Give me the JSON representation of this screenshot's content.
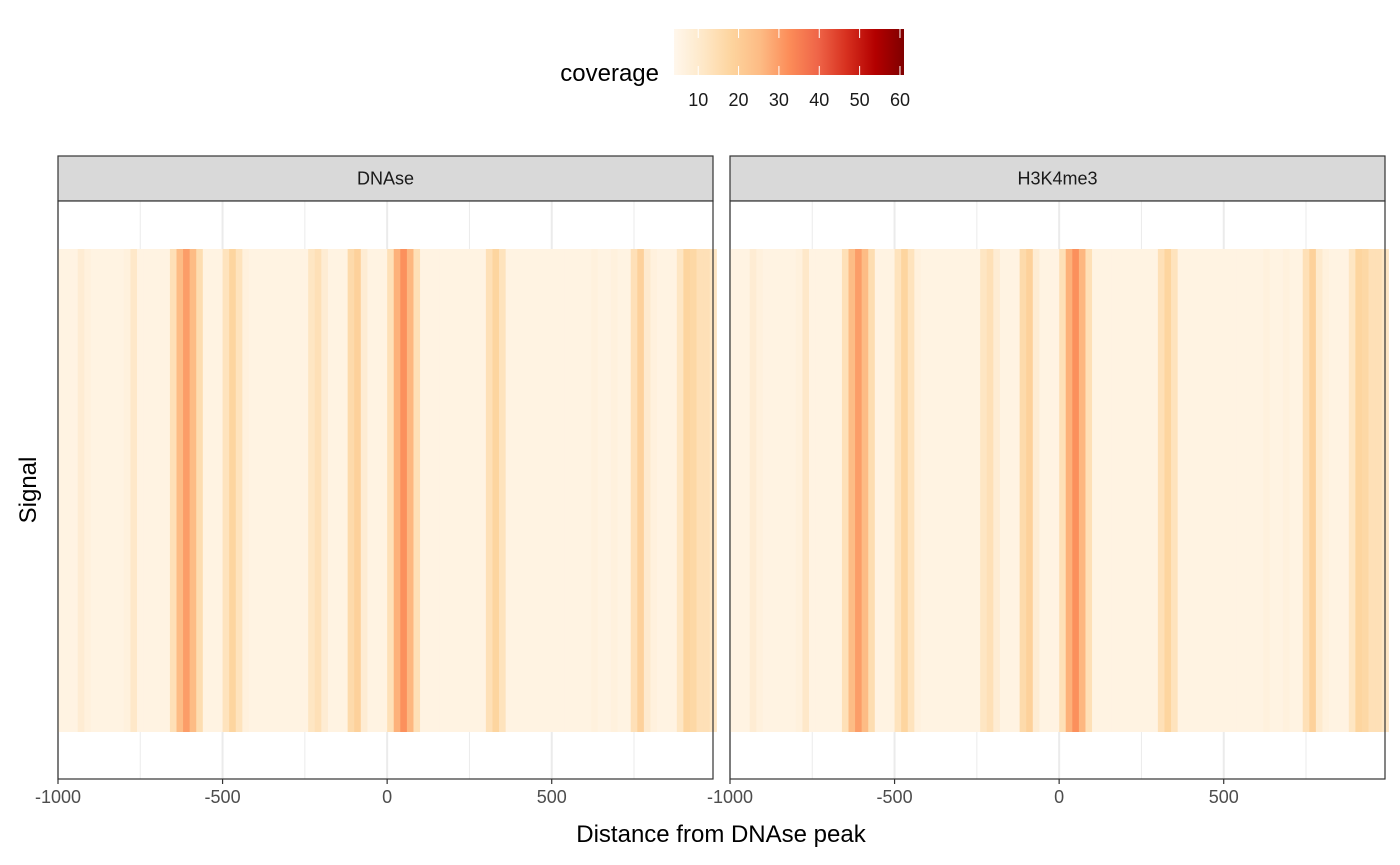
{
  "chart_data": {
    "type": "heatmap",
    "xlabel": "Distance from DNAse peak",
    "ylabel": "Signal",
    "xlim": [
      -1000,
      990
    ],
    "x_ticks": [
      -1000,
      -500,
      0,
      500
    ],
    "x_tick_labels": [
      "-1000",
      "-500",
      "0",
      "500"
    ],
    "x_minor_ticks": [
      -750,
      -250,
      250,
      750
    ],
    "grid": true,
    "legend": {
      "title": "coverage",
      "position": "top",
      "ticks": [
        10,
        20,
        30,
        40,
        50,
        60
      ],
      "tick_labels": [
        "10",
        "20",
        "30",
        "40",
        "50",
        "60"
      ],
      "range": [
        4,
        61
      ],
      "colors": [
        "#fff7ec",
        "#fee8c8",
        "#fdd49e",
        "#fdbb84",
        "#fc8d59",
        "#ef6548",
        "#d7301f",
        "#b30000",
        "#7f0000"
      ]
    },
    "bin_width": 20,
    "panels": [
      {
        "label": "DNAse",
        "bins": [
          {
            "x": -1000,
            "v": 6
          },
          {
            "x": -980,
            "v": 6
          },
          {
            "x": -960,
            "v": 6
          },
          {
            "x": -940,
            "v": 9
          },
          {
            "x": -920,
            "v": 7
          },
          {
            "x": -900,
            "v": 6
          },
          {
            "x": -880,
            "v": 6
          },
          {
            "x": -860,
            "v": 6
          },
          {
            "x": -840,
            "v": 6
          },
          {
            "x": -820,
            "v": 6
          },
          {
            "x": -800,
            "v": 7
          },
          {
            "x": -780,
            "v": 11
          },
          {
            "x": -760,
            "v": 6
          },
          {
            "x": -740,
            "v": 6
          },
          {
            "x": -720,
            "v": 6
          },
          {
            "x": -700,
            "v": 6
          },
          {
            "x": -680,
            "v": 6
          },
          {
            "x": -660,
            "v": 14
          },
          {
            "x": -640,
            "v": 25
          },
          {
            "x": -620,
            "v": 30
          },
          {
            "x": -600,
            "v": 25
          },
          {
            "x": -580,
            "v": 15
          },
          {
            "x": -560,
            "v": 6
          },
          {
            "x": -540,
            "v": 6
          },
          {
            "x": -520,
            "v": 6
          },
          {
            "x": -500,
            "v": 13
          },
          {
            "x": -480,
            "v": 18
          },
          {
            "x": -460,
            "v": 13
          },
          {
            "x": -440,
            "v": 7
          },
          {
            "x": -420,
            "v": 6
          },
          {
            "x": -400,
            "v": 6
          },
          {
            "x": -380,
            "v": 6
          },
          {
            "x": -360,
            "v": 6
          },
          {
            "x": -340,
            "v": 6
          },
          {
            "x": -320,
            "v": 6
          },
          {
            "x": -300,
            "v": 6
          },
          {
            "x": -280,
            "v": 6
          },
          {
            "x": -260,
            "v": 6
          },
          {
            "x": -240,
            "v": 12
          },
          {
            "x": -220,
            "v": 14
          },
          {
            "x": -200,
            "v": 9
          },
          {
            "x": -180,
            "v": 6
          },
          {
            "x": -160,
            "v": 6
          },
          {
            "x": -140,
            "v": 6
          },
          {
            "x": -120,
            "v": 16
          },
          {
            "x": -100,
            "v": 19
          },
          {
            "x": -80,
            "v": 9
          },
          {
            "x": -60,
            "v": 6
          },
          {
            "x": -40,
            "v": 6
          },
          {
            "x": -20,
            "v": 6
          },
          {
            "x": 0,
            "v": 14
          },
          {
            "x": 20,
            "v": 27
          },
          {
            "x": 40,
            "v": 32
          },
          {
            "x": 60,
            "v": 26
          },
          {
            "x": 80,
            "v": 14
          },
          {
            "x": 100,
            "v": 6
          },
          {
            "x": 120,
            "v": 6
          },
          {
            "x": 140,
            "v": 6
          },
          {
            "x": 160,
            "v": 6
          },
          {
            "x": 180,
            "v": 6
          },
          {
            "x": 200,
            "v": 6
          },
          {
            "x": 220,
            "v": 6
          },
          {
            "x": 240,
            "v": 6
          },
          {
            "x": 260,
            "v": 6
          },
          {
            "x": 280,
            "v": 6
          },
          {
            "x": 300,
            "v": 14
          },
          {
            "x": 320,
            "v": 18
          },
          {
            "x": 340,
            "v": 13
          },
          {
            "x": 360,
            "v": 6
          },
          {
            "x": 380,
            "v": 6
          },
          {
            "x": 400,
            "v": 6
          },
          {
            "x": 420,
            "v": 6
          },
          {
            "x": 440,
            "v": 6
          },
          {
            "x": 460,
            "v": 6
          },
          {
            "x": 480,
            "v": 6
          },
          {
            "x": 500,
            "v": 6
          },
          {
            "x": 520,
            "v": 6
          },
          {
            "x": 540,
            "v": 6
          },
          {
            "x": 560,
            "v": 6
          },
          {
            "x": 580,
            "v": 6
          },
          {
            "x": 600,
            "v": 6
          },
          {
            "x": 620,
            "v": 7
          },
          {
            "x": 640,
            "v": 6
          },
          {
            "x": 660,
            "v": 6
          },
          {
            "x": 680,
            "v": 7
          },
          {
            "x": 700,
            "v": 6
          },
          {
            "x": 720,
            "v": 6
          },
          {
            "x": 740,
            "v": 14
          },
          {
            "x": 760,
            "v": 19
          },
          {
            "x": 780,
            "v": 10
          },
          {
            "x": 800,
            "v": 7
          },
          {
            "x": 820,
            "v": 6
          },
          {
            "x": 840,
            "v": 6
          },
          {
            "x": 860,
            "v": 6
          },
          {
            "x": 880,
            "v": 12
          },
          {
            "x": 900,
            "v": 18
          },
          {
            "x": 920,
            "v": 17
          },
          {
            "x": 940,
            "v": 14
          },
          {
            "x": 960,
            "v": 14
          },
          {
            "x": 980,
            "v": 12
          }
        ]
      },
      {
        "label": "H3K4me3",
        "bins": [
          {
            "x": -1000,
            "v": 6
          },
          {
            "x": -980,
            "v": 6
          },
          {
            "x": -960,
            "v": 6
          },
          {
            "x": -940,
            "v": 9
          },
          {
            "x": -920,
            "v": 7
          },
          {
            "x": -900,
            "v": 6
          },
          {
            "x": -880,
            "v": 6
          },
          {
            "x": -860,
            "v": 6
          },
          {
            "x": -840,
            "v": 6
          },
          {
            "x": -820,
            "v": 6
          },
          {
            "x": -800,
            "v": 7
          },
          {
            "x": -780,
            "v": 11
          },
          {
            "x": -760,
            "v": 6
          },
          {
            "x": -740,
            "v": 6
          },
          {
            "x": -720,
            "v": 6
          },
          {
            "x": -700,
            "v": 6
          },
          {
            "x": -680,
            "v": 6
          },
          {
            "x": -660,
            "v": 14
          },
          {
            "x": -640,
            "v": 25
          },
          {
            "x": -620,
            "v": 30
          },
          {
            "x": -600,
            "v": 25
          },
          {
            "x": -580,
            "v": 15
          },
          {
            "x": -560,
            "v": 6
          },
          {
            "x": -540,
            "v": 6
          },
          {
            "x": -520,
            "v": 6
          },
          {
            "x": -500,
            "v": 13
          },
          {
            "x": -480,
            "v": 18
          },
          {
            "x": -460,
            "v": 13
          },
          {
            "x": -440,
            "v": 7
          },
          {
            "x": -420,
            "v": 6
          },
          {
            "x": -400,
            "v": 6
          },
          {
            "x": -380,
            "v": 6
          },
          {
            "x": -360,
            "v": 6
          },
          {
            "x": -340,
            "v": 6
          },
          {
            "x": -320,
            "v": 6
          },
          {
            "x": -300,
            "v": 6
          },
          {
            "x": -280,
            "v": 6
          },
          {
            "x": -260,
            "v": 6
          },
          {
            "x": -240,
            "v": 12
          },
          {
            "x": -220,
            "v": 14
          },
          {
            "x": -200,
            "v": 9
          },
          {
            "x": -180,
            "v": 6
          },
          {
            "x": -160,
            "v": 6
          },
          {
            "x": -140,
            "v": 6
          },
          {
            "x": -120,
            "v": 16
          },
          {
            "x": -100,
            "v": 19
          },
          {
            "x": -80,
            "v": 9
          },
          {
            "x": -60,
            "v": 6
          },
          {
            "x": -40,
            "v": 6
          },
          {
            "x": -20,
            "v": 6
          },
          {
            "x": 0,
            "v": 14
          },
          {
            "x": 20,
            "v": 27
          },
          {
            "x": 40,
            "v": 32
          },
          {
            "x": 60,
            "v": 26
          },
          {
            "x": 80,
            "v": 14
          },
          {
            "x": 100,
            "v": 6
          },
          {
            "x": 120,
            "v": 6
          },
          {
            "x": 140,
            "v": 6
          },
          {
            "x": 160,
            "v": 6
          },
          {
            "x": 180,
            "v": 6
          },
          {
            "x": 200,
            "v": 6
          },
          {
            "x": 220,
            "v": 6
          },
          {
            "x": 240,
            "v": 6
          },
          {
            "x": 260,
            "v": 6
          },
          {
            "x": 280,
            "v": 6
          },
          {
            "x": 300,
            "v": 14
          },
          {
            "x": 320,
            "v": 18
          },
          {
            "x": 340,
            "v": 13
          },
          {
            "x": 360,
            "v": 6
          },
          {
            "x": 380,
            "v": 6
          },
          {
            "x": 400,
            "v": 6
          },
          {
            "x": 420,
            "v": 6
          },
          {
            "x": 440,
            "v": 6
          },
          {
            "x": 460,
            "v": 6
          },
          {
            "x": 480,
            "v": 6
          },
          {
            "x": 500,
            "v": 6
          },
          {
            "x": 520,
            "v": 6
          },
          {
            "x": 540,
            "v": 6
          },
          {
            "x": 560,
            "v": 6
          },
          {
            "x": 580,
            "v": 6
          },
          {
            "x": 600,
            "v": 6
          },
          {
            "x": 620,
            "v": 7
          },
          {
            "x": 640,
            "v": 6
          },
          {
            "x": 660,
            "v": 6
          },
          {
            "x": 680,
            "v": 7
          },
          {
            "x": 700,
            "v": 6
          },
          {
            "x": 720,
            "v": 6
          },
          {
            "x": 740,
            "v": 14
          },
          {
            "x": 760,
            "v": 19
          },
          {
            "x": 780,
            "v": 10
          },
          {
            "x": 800,
            "v": 7
          },
          {
            "x": 820,
            "v": 6
          },
          {
            "x": 840,
            "v": 6
          },
          {
            "x": 860,
            "v": 6
          },
          {
            "x": 880,
            "v": 12
          },
          {
            "x": 900,
            "v": 18
          },
          {
            "x": 920,
            "v": 17
          },
          {
            "x": 940,
            "v": 14
          },
          {
            "x": 960,
            "v": 14
          },
          {
            "x": 980,
            "v": 12
          }
        ]
      }
    ]
  }
}
